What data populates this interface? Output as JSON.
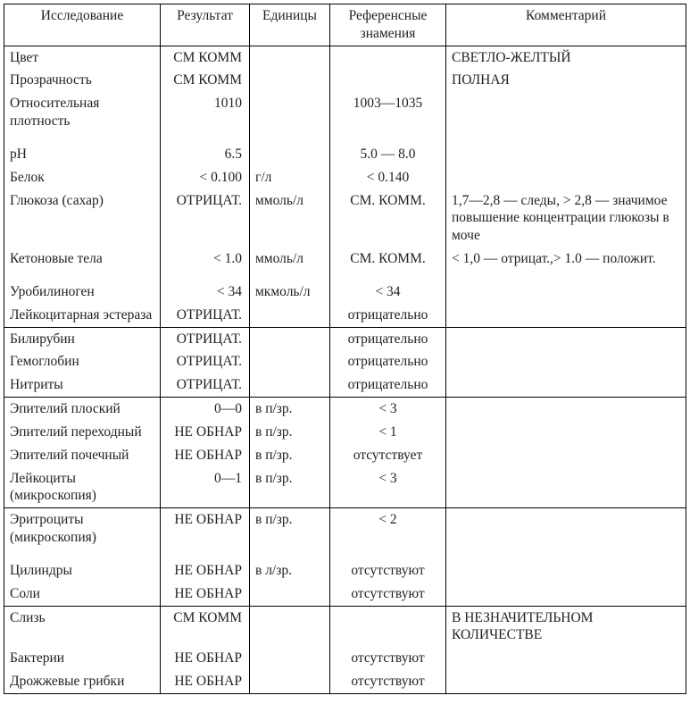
{
  "table": {
    "columns": [
      "Исследование",
      "Результат",
      "Единицы",
      "Референсные знамения",
      "Комментарий"
    ],
    "col_align": [
      "left",
      "right",
      "left",
      "center",
      "left"
    ],
    "groups": [
      {
        "rows": [
          {
            "name": "Цвет",
            "result": "СМ КОММ",
            "units": "",
            "ref": "",
            "comment": "СВЕТЛО-ЖЕЛТЫЙ"
          },
          {
            "name": "Прозрачность",
            "result": "СМ КОММ",
            "units": "",
            "ref": "",
            "comment": "ПОЛНАЯ"
          },
          {
            "name": "Относительная плотность",
            "result": "1010",
            "units": "",
            "ref": "1003—1035",
            "comment": "",
            "tall": true
          },
          {
            "name": "рН",
            "result": "6.5",
            "units": "",
            "ref": "5.0 — 8.0",
            "comment": ""
          },
          {
            "name": "Белок",
            "result": "< 0.100",
            "units": "г/л",
            "ref": "< 0.140",
            "comment": ""
          },
          {
            "name": "Глюкоза (сахар)",
            "result": "ОТРИЦАТ.",
            "units": "ммоль/л",
            "ref": "СМ. КОММ.",
            "comment": "1,7—2,8 — следы, > 2,8 — значимое повышение концентрации глюкозы в моче"
          },
          {
            "name": "Кетоновые тела",
            "result": "< 1.0",
            "units": "ммоль/л",
            "ref": "СМ. КОММ.",
            "comment": "< 1,0 — отрицат.,> 1.0 — положит.",
            "tall": true
          },
          {
            "name": "Уробилиноген",
            "result": "< 34",
            "units": "мкмоль/л",
            "ref": "< 34",
            "comment": ""
          },
          {
            "name": "Лейкоцитарная эстераза",
            "result": "ОТРИЦАТ.",
            "units": "",
            "ref": "отрицательно",
            "comment": ""
          }
        ]
      },
      {
        "rows": [
          {
            "name": "Билирубин",
            "result": "ОТРИЦАТ.",
            "units": "",
            "ref": "отрицательно",
            "comment": ""
          },
          {
            "name": "Гемоглобин",
            "result": "ОТРИЦАТ.",
            "units": "",
            "ref": "отрицательно",
            "comment": ""
          },
          {
            "name": "Нитриты",
            "result": "ОТРИЦАТ.",
            "units": "",
            "ref": "отрицательно",
            "comment": ""
          }
        ]
      },
      {
        "rows": [
          {
            "name": "Эпителий плоский",
            "result": "0—0",
            "units": "в п/зр.",
            "ref": "< 3",
            "comment": ""
          },
          {
            "name": "Эпителий переходный",
            "result": "НЕ ОБНАР",
            "units": "в п/зр.",
            "ref": "< 1",
            "comment": ""
          },
          {
            "name": "Эпителий почечный",
            "result": "НЕ ОБНАР",
            "units": "в п/зр.",
            "ref": "отсутствует",
            "comment": ""
          },
          {
            "name": "Лейкоциты (микроскопия)",
            "result": "0—1",
            "units": "в п/зр.",
            "ref": "< 3",
            "comment": ""
          }
        ]
      },
      {
        "rows": [
          {
            "name": "Эритроциты (микроскопия)",
            "result": "НЕ ОБНАР",
            "units": "в п/зр.",
            "ref": "< 2",
            "comment": "",
            "tall": true
          },
          {
            "name": "Цилиндры",
            "result": "НЕ ОБНАР",
            "units": "в л/зр.",
            "ref": "отсутствуют",
            "comment": ""
          },
          {
            "name": "Соли",
            "result": "НЕ ОБНАР",
            "units": "",
            "ref": "отсутствуют",
            "comment": ""
          }
        ]
      },
      {
        "rows": [
          {
            "name": "Слизь",
            "result": "СМ КОММ",
            "units": "",
            "ref": "",
            "comment": "В НЕЗНАЧИТЕЛЬНОМ КОЛИЧЕСТВЕ"
          },
          {
            "name": "Бактерии",
            "result": "НЕ ОБНАР",
            "units": "",
            "ref": "отсутствуют",
            "comment": ""
          },
          {
            "name": "Дрожжевые грибки",
            "result": "НЕ ОБНАР",
            "units": "",
            "ref": "отсутствуют",
            "comment": ""
          }
        ]
      }
    ]
  }
}
